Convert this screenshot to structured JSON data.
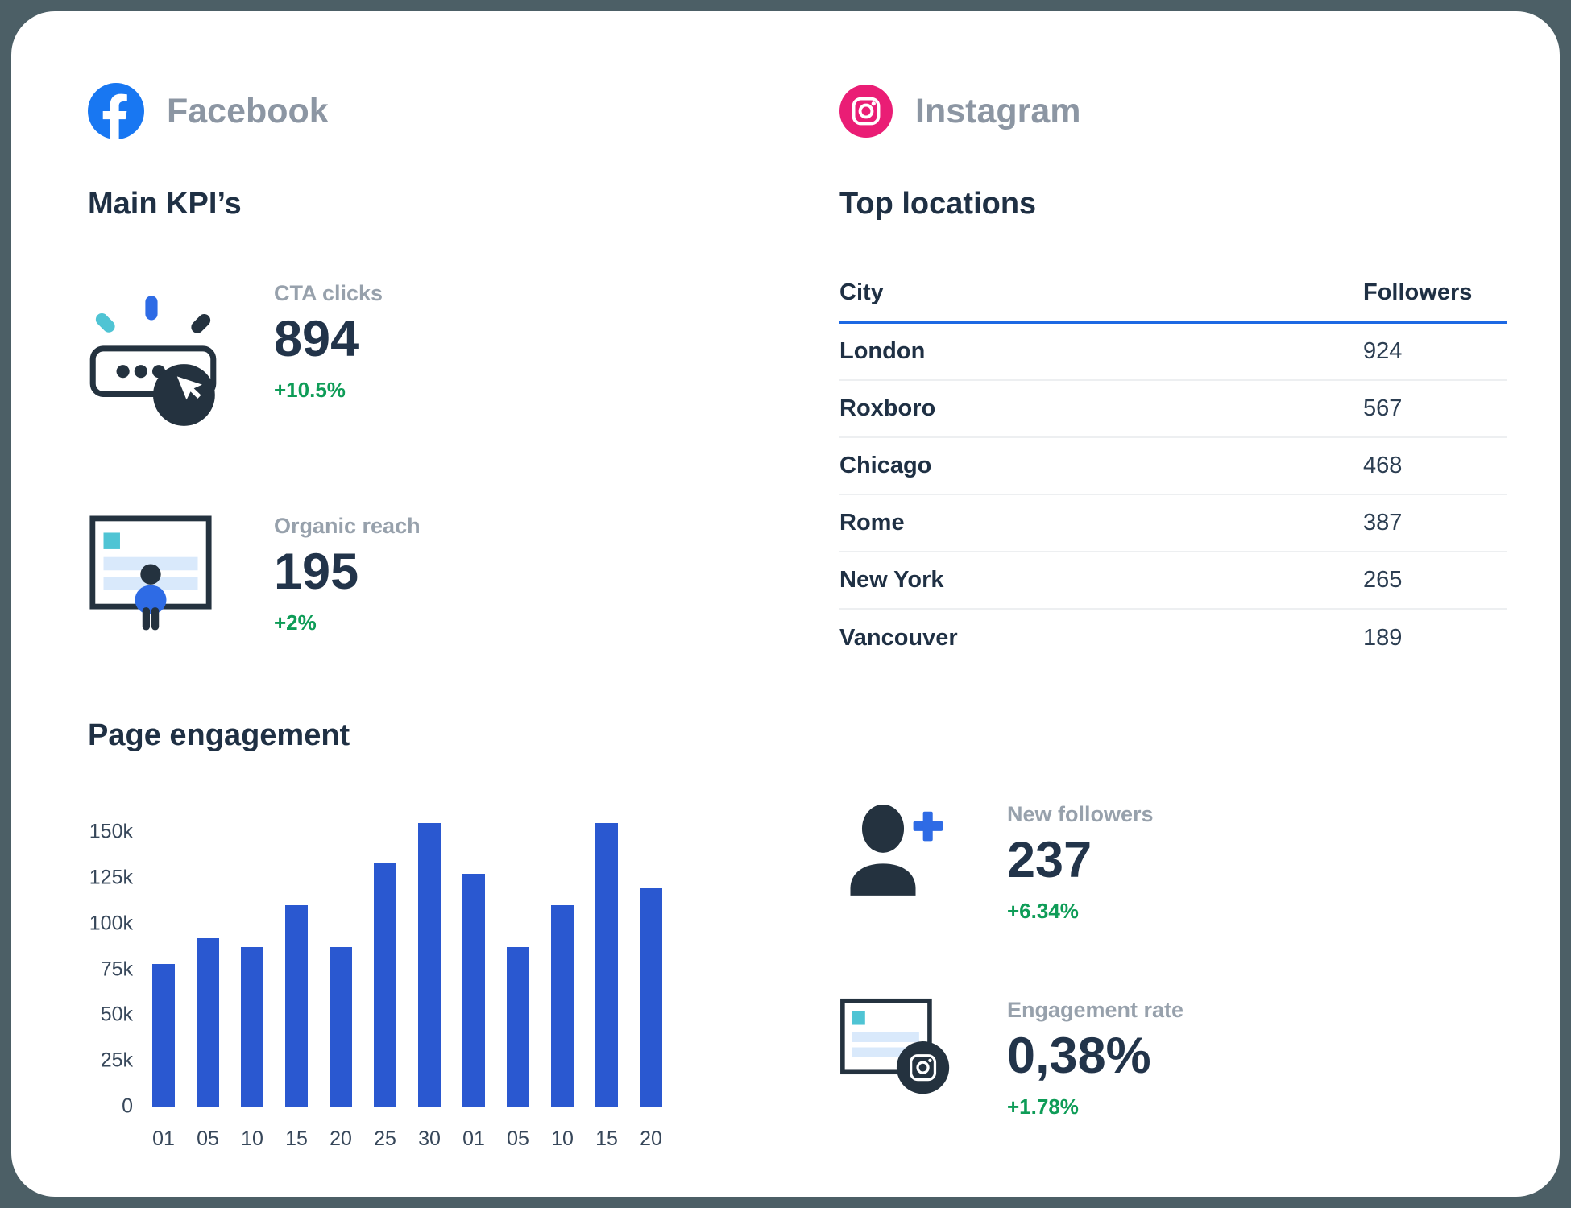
{
  "facebook": {
    "title": "Facebook",
    "logo_icon": "facebook-logo-icon",
    "section_title": "Main KPI’s",
    "kpis": [
      {
        "icon": "cta-clicks-icon",
        "label": "CTA clicks",
        "value": "894",
        "change": "+10.5%"
      },
      {
        "icon": "organic-reach-icon",
        "label": "Organic reach",
        "value": "195",
        "change": "+2%"
      }
    ],
    "chart_title": "Page engagement"
  },
  "chart_data": {
    "type": "bar",
    "title": "Page engagement",
    "categories": [
      "01",
      "05",
      "10",
      "15",
      "20",
      "25",
      "30",
      "01",
      "05",
      "10",
      "15",
      "20"
    ],
    "values": [
      78000,
      92000,
      87000,
      110000,
      87000,
      133000,
      155000,
      127000,
      87000,
      110000,
      155000,
      119000
    ],
    "xlabel": "",
    "ylabel": "",
    "ylim": [
      0,
      150000
    ],
    "ytick_labels": [
      "0",
      "25k",
      "50k",
      "75k",
      "100k",
      "125k",
      "150k"
    ],
    "bar_color": "#2A58D0",
    "grid": false,
    "legend": "none"
  },
  "instagram": {
    "title": "Instagram",
    "logo_icon": "instagram-logo-icon",
    "section_title": "Top locations",
    "table": {
      "columns": [
        "City",
        "Followers"
      ],
      "rows": [
        [
          "London",
          "924"
        ],
        [
          "Roxboro",
          "567"
        ],
        [
          "Chicago",
          "468"
        ],
        [
          "Rome",
          "387"
        ],
        [
          "New York",
          "265"
        ],
        [
          "Vancouver",
          "189"
        ]
      ]
    },
    "kpis": [
      {
        "icon": "new-followers-icon",
        "label": "New followers",
        "value": "237",
        "change": "+6.34%"
      },
      {
        "icon": "engagement-rate-icon",
        "label": "Engagement rate",
        "value": "0,38%",
        "change": "+1.78%"
      }
    ]
  },
  "colors": {
    "background": "#4C5F66",
    "facebook_blue": "#1877F2",
    "instagram_pink": "#EA1D75",
    "bar_blue": "#2A58D0",
    "table_header_underline": "#1C68E3",
    "accent_green": "#0E9C57",
    "navy_text": "#1F3044",
    "gray_label": "#97A1AC"
  }
}
